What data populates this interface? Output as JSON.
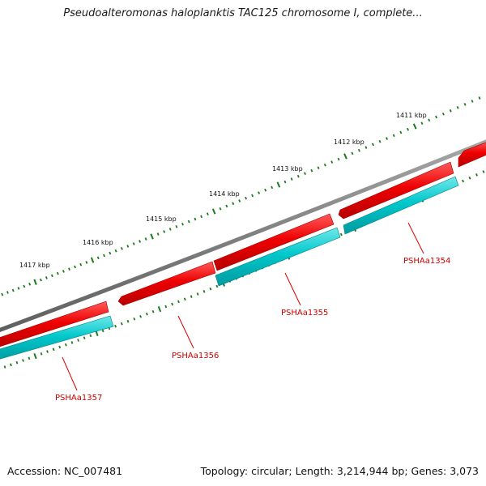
{
  "title": "Pseudoalteromonas haloplanktis TAC125 chromosome I, complete...",
  "footer": {
    "accession": "Accession: NC_007481",
    "topology": "Topology: circular; Length: 3,214,944 bp; Genes: 3,073"
  },
  "colors": {
    "backbone": "#7a7a7a",
    "forward_strand": "#ee0000",
    "reverse_strand": "#00c8cc",
    "ticks": "#1b7a1b",
    "gene_label": "#cc0000"
  },
  "kbp_ticks": [
    "1411 kbp",
    "1412 kbp",
    "1413 kbp",
    "1414 kbp",
    "1415 kbp",
    "1416 kbp",
    "1417 kbp"
  ],
  "genes": [
    {
      "label": "PSHAa1354"
    },
    {
      "label": "PSHAa1355"
    },
    {
      "label": "PSHAa1356"
    },
    {
      "label": "PSHAa1357"
    }
  ]
}
